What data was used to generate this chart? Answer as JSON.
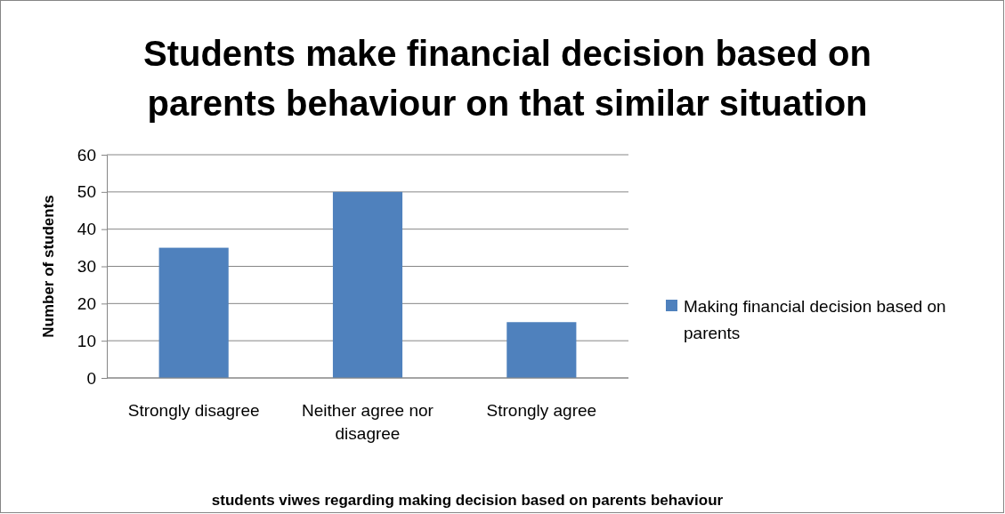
{
  "chart_data": {
    "type": "bar",
    "title": "Students make financial decision based on parents behaviour on that similar situation",
    "xlabel": "students viwes regarding making decision based on parents behaviour",
    "ylabel": "Number of students",
    "categories": [
      "Strongly disagree",
      "Neither agree nor disagree",
      "Strongly agree"
    ],
    "series": [
      {
        "name": "Making financial decision based on parents",
        "color": "#4f81bd",
        "values": [
          35,
          50,
          15
        ]
      }
    ],
    "ylim": [
      0,
      60
    ],
    "yticks": [
      0,
      10,
      20,
      30,
      40,
      50,
      60
    ],
    "grid": "y",
    "legend": "right"
  }
}
